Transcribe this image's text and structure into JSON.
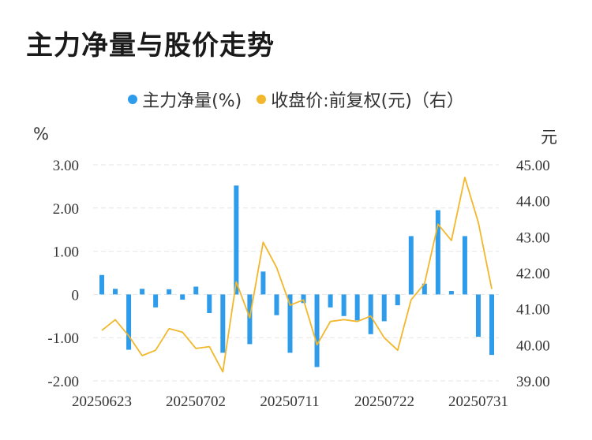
{
  "title": "主力净量与股价走势",
  "legend": [
    {
      "label": "主力净量(%)",
      "color": "#2e9cea"
    },
    {
      "label": "收盘价:前复权(元)（右）",
      "color": "#f2b72b"
    }
  ],
  "left_unit": "%",
  "right_unit": "元",
  "chart_data": {
    "type": "bar",
    "title": "主力净量与股价走势",
    "x_tick_labels": [
      "20250623",
      "20250702",
      "20250711",
      "20250722",
      "20250731"
    ],
    "left_axis": {
      "ticks": [
        "3.00",
        "2.00",
        "1.00",
        "0",
        "-1.00",
        "-2.00"
      ],
      "ylim": [
        -2,
        3
      ]
    },
    "right_axis": {
      "ticks": [
        "45.00",
        "44.00",
        "43.00",
        "42.00",
        "41.00",
        "40.00",
        "39.00"
      ],
      "ylim": [
        39,
        45
      ]
    },
    "grid": true,
    "legend_position": "top-center",
    "series": [
      {
        "name": "主力净量(%)",
        "type": "bar",
        "axis": "left",
        "values": [
          0.45,
          0.13,
          -1.28,
          0.13,
          -0.3,
          0.12,
          -0.12,
          0.18,
          -0.43,
          -1.35,
          2.52,
          -1.15,
          0.53,
          -0.48,
          -1.35,
          -0.2,
          -1.68,
          -0.3,
          -0.5,
          -0.6,
          -0.92,
          -0.62,
          -0.25,
          1.35,
          0.25,
          1.95,
          0.08,
          1.35,
          -0.98,
          -1.4
        ]
      },
      {
        "name": "收盘价:前复权(元)（右）",
        "type": "line",
        "axis": "right",
        "values": [
          40.4,
          40.7,
          40.25,
          39.7,
          39.85,
          40.45,
          40.35,
          39.9,
          39.95,
          39.25,
          41.75,
          40.75,
          42.85,
          42.15,
          41.1,
          41.25,
          40.0,
          40.65,
          40.7,
          40.65,
          40.8,
          40.2,
          39.85,
          41.25,
          41.7,
          43.35,
          42.9,
          44.65,
          43.4,
          41.55
        ]
      }
    ]
  }
}
